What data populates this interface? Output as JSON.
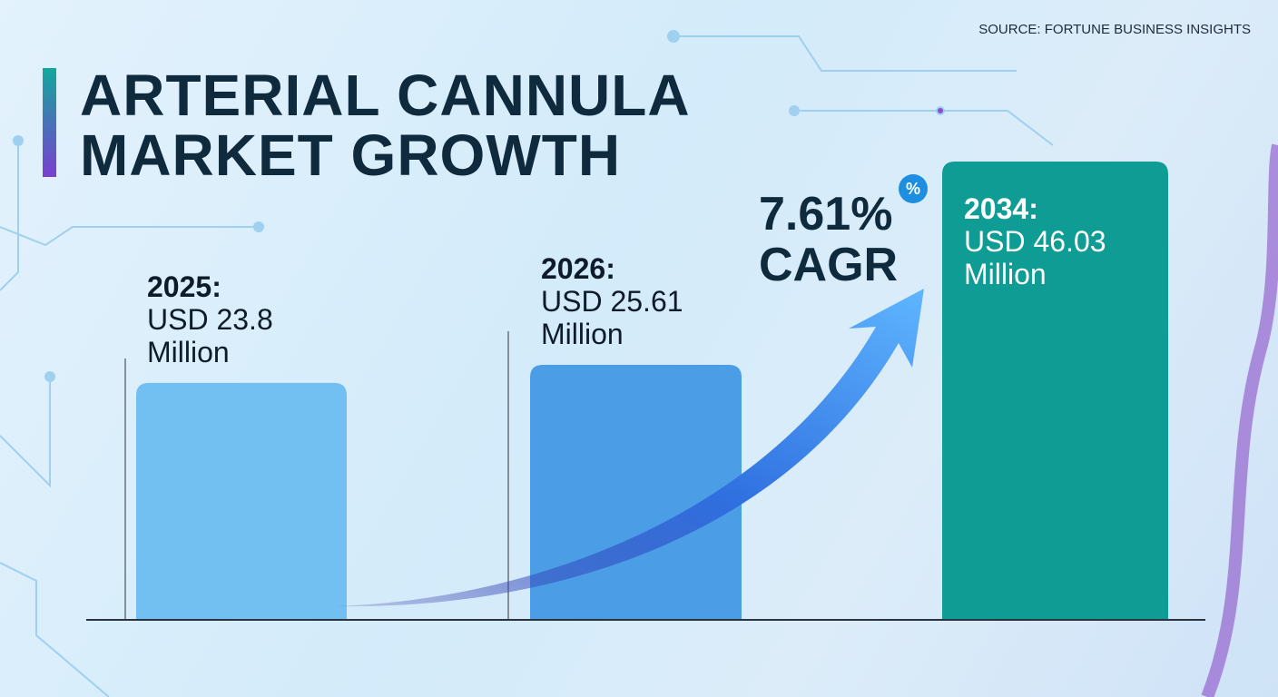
{
  "source": "SOURCE: FORTUNE BUSINESS INSIGHTS",
  "chart_data": {
    "type": "bar",
    "title": "ARTERIAL CANNULA MARKET GROWTH",
    "categories": [
      "2025:",
      "2026:",
      "2034:"
    ],
    "values": [
      23.8,
      25.61,
      46.03
    ],
    "value_labels": [
      "USD 23.8 Million",
      "USD 25.61 Million",
      "USD 46.03 Million"
    ],
    "colors": [
      "#72bff2",
      "#4b9de6",
      "#0e9c94"
    ],
    "annotation": {
      "value": "7.61%",
      "label": "CAGR",
      "badge": "%"
    }
  }
}
